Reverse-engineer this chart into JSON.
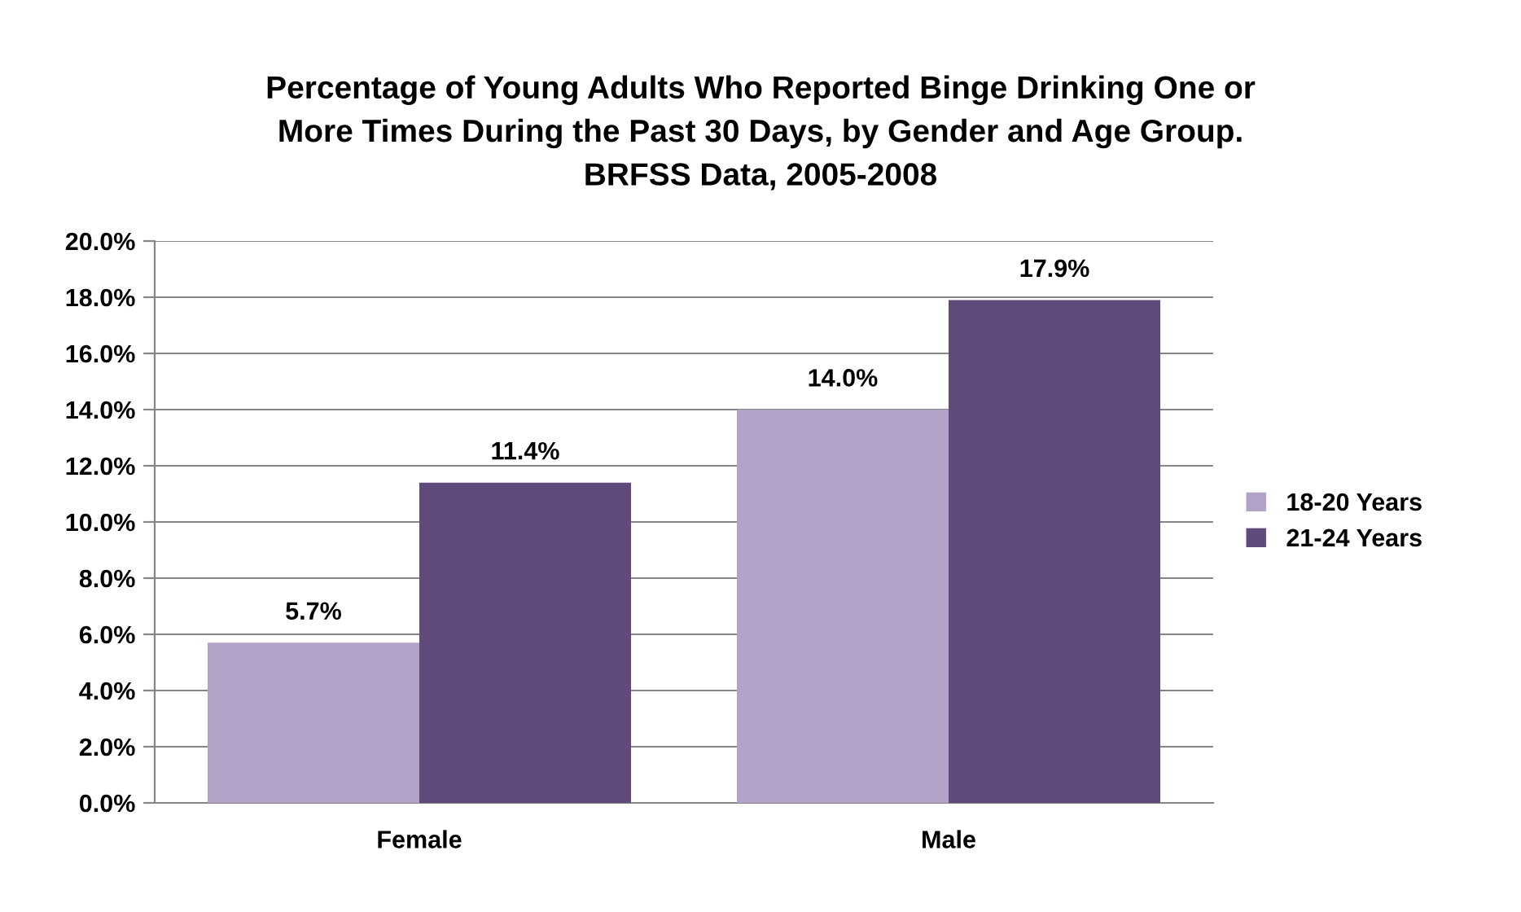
{
  "chart_data": {
    "type": "bar",
    "title": "Percentage of Young Adults Who Reported Binge Drinking One or\nMore Times During the Past 30 Days, by Gender and Age Group.\nBRFSS Data, 2005-2008",
    "categories": [
      "Female",
      "Male"
    ],
    "series": [
      {
        "name": "18-20 Years",
        "color": "#b3a2c7",
        "values": [
          5.7,
          14.0
        ],
        "value_labels": [
          "5.7%",
          "14.0%"
        ]
      },
      {
        "name": "21-24 Years",
        "color": "#604a7b",
        "values": [
          11.4,
          17.9
        ],
        "value_labels": [
          "11.4%",
          "17.9%"
        ]
      }
    ],
    "ylim": [
      0,
      20
    ],
    "yticks": [
      {
        "value": 0,
        "label": "0.0%"
      },
      {
        "value": 2,
        "label": "2.0%"
      },
      {
        "value": 4,
        "label": "4.0%"
      },
      {
        "value": 6,
        "label": "6.0%"
      },
      {
        "value": 8,
        "label": "8.0%"
      },
      {
        "value": 10,
        "label": "10.0%"
      },
      {
        "value": 12,
        "label": "12.0%"
      },
      {
        "value": 14,
        "label": "14.0%"
      },
      {
        "value": 16,
        "label": "16.0%"
      },
      {
        "value": 18,
        "label": "18.0%"
      },
      {
        "value": 20,
        "label": "20.0%"
      }
    ],
    "grid": "y",
    "legend": "right"
  }
}
